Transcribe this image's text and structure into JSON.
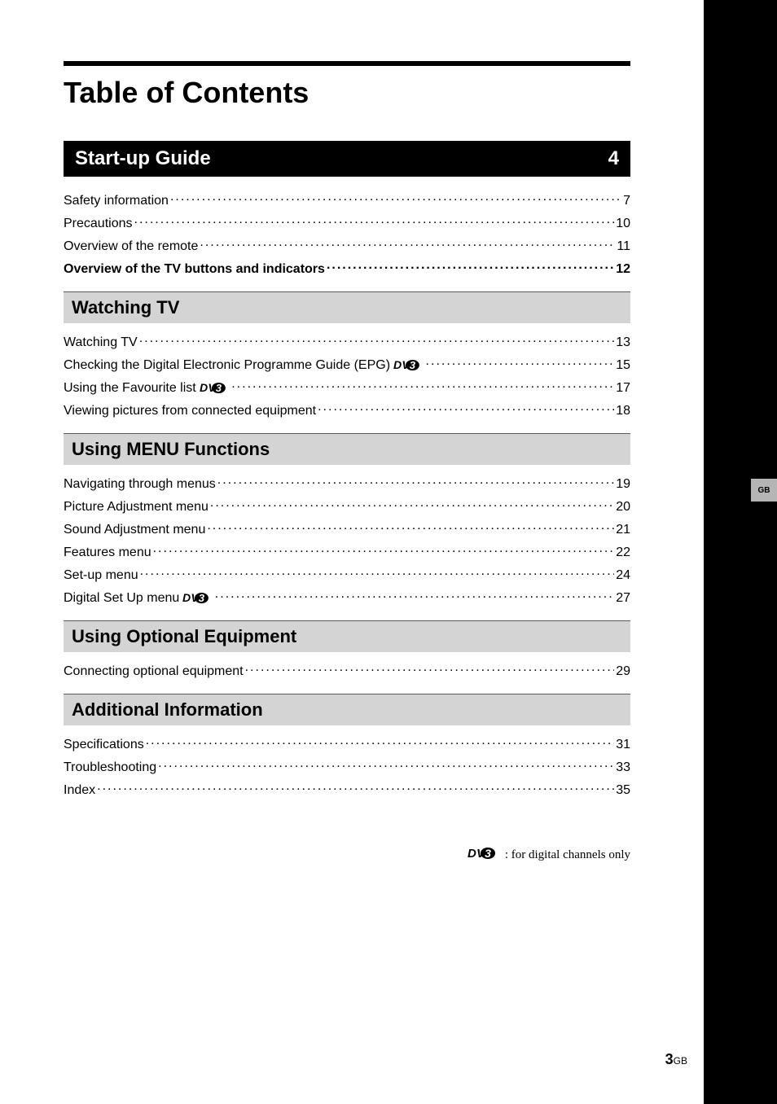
{
  "page_title": "Table of Contents",
  "side_tab": "GB",
  "primary_section": {
    "label": "Start-up Guide",
    "page": "4"
  },
  "startup_items": [
    {
      "label": "Safety information",
      "page": "7",
      "bold": false,
      "dvb": false
    },
    {
      "label": "Precautions",
      "page": "10",
      "bold": false,
      "dvb": false
    },
    {
      "label": "Overview of the remote",
      "page": "11",
      "bold": false,
      "dvb": false
    },
    {
      "label": "Overview of the TV buttons and indicators",
      "page": "12",
      "bold": true,
      "dvb": false
    }
  ],
  "sections": [
    {
      "heading": "Watching TV",
      "items": [
        {
          "label": "Watching TV",
          "page": "13",
          "bold": false,
          "dvb": false
        },
        {
          "label": "Checking the Digital Electronic Programme Guide (EPG)",
          "page": "15",
          "bold": false,
          "dvb": true
        },
        {
          "label": "Using the Favourite list",
          "page": "17",
          "bold": false,
          "dvb": true
        },
        {
          "label": "Viewing pictures from connected equipment",
          "page": "18",
          "bold": false,
          "dvb": false
        }
      ]
    },
    {
      "heading": "Using MENU Functions",
      "items": [
        {
          "label": "Navigating through menus",
          "page": "19",
          "bold": false,
          "dvb": false
        },
        {
          "label": "Picture Adjustment menu",
          "page": "20",
          "bold": false,
          "dvb": false
        },
        {
          "label": "Sound Adjustment menu",
          "page": "21",
          "bold": false,
          "dvb": false
        },
        {
          "label": "Features menu",
          "page": "22",
          "bold": false,
          "dvb": false
        },
        {
          "label": "Set-up menu",
          "page": "24",
          "bold": false,
          "dvb": false
        },
        {
          "label": "Digital Set Up menu",
          "page": "27",
          "bold": false,
          "dvb": true
        }
      ]
    },
    {
      "heading": "Using Optional Equipment",
      "items": [
        {
          "label": "Connecting optional equipment",
          "page": "29",
          "bold": false,
          "dvb": false
        }
      ]
    },
    {
      "heading": "Additional Information",
      "items": [
        {
          "label": "Specifications",
          "page": "31",
          "bold": false,
          "dvb": false
        },
        {
          "label": "Troubleshooting",
          "page": "33",
          "bold": false,
          "dvb": false
        },
        {
          "label": "Index",
          "page": "35",
          "bold": false,
          "dvb": false
        }
      ]
    }
  ],
  "footnote": ": for digital channels only",
  "footer_page_number": "3",
  "footer_page_suffix": "GB",
  "colors": {
    "black": "#000000",
    "grey_header": "#d4d4d4",
    "grey_border": "#5a5a5a",
    "side_tab_bg": "#b5b5b5"
  }
}
